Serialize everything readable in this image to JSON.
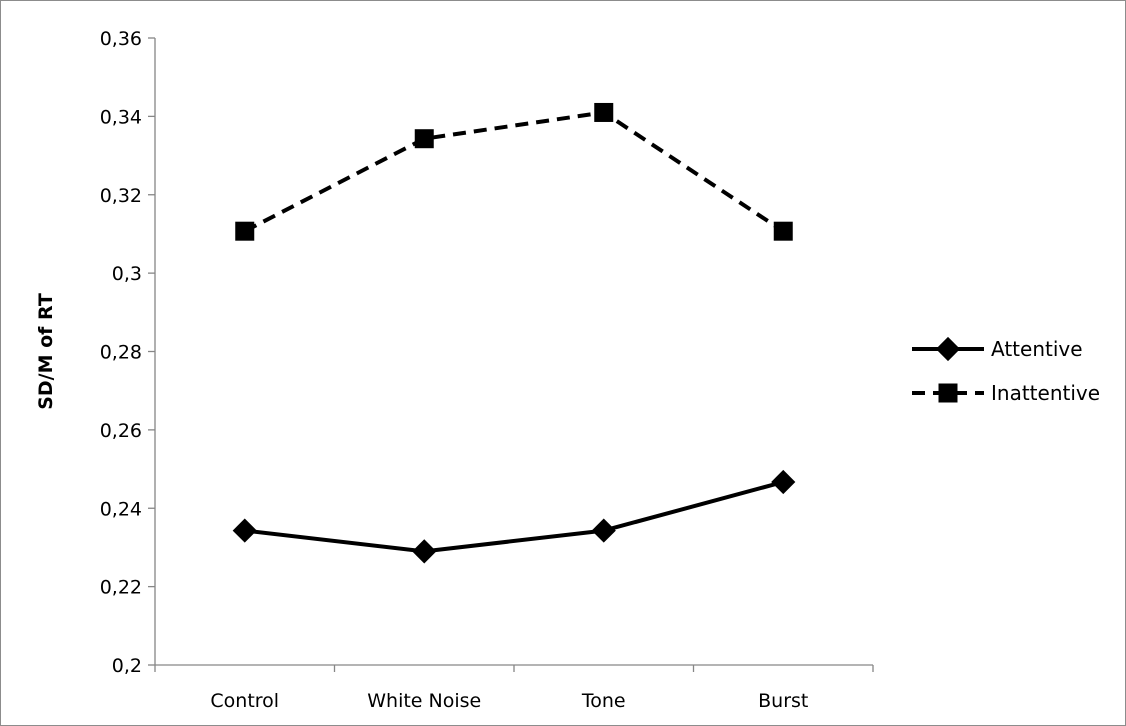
{
  "chart_data": {
    "type": "line",
    "title": "",
    "xlabel": "",
    "ylabel": "SD/M of RT",
    "categories": [
      "Control",
      "White Noise",
      "Tone",
      "Burst"
    ],
    "ylim": [
      0.2,
      0.36
    ],
    "yticks": [
      0.2,
      0.22,
      0.24,
      0.26,
      0.28,
      0.3,
      0.32,
      0.34,
      0.36
    ],
    "ytick_labels": [
      "0,2",
      "0,22",
      "0,24",
      "0,26",
      "0,28",
      "0,3",
      "0,32",
      "0,34",
      "0,36"
    ],
    "grid": false,
    "legend_position": "right",
    "series": [
      {
        "name": "Attentive",
        "values": [
          0.2343,
          0.229,
          0.2343,
          0.2467
        ],
        "line_style": "solid",
        "marker": "diamond",
        "color": "#000000"
      },
      {
        "name": "Inattentive",
        "values": [
          0.3107,
          0.3343,
          0.341,
          0.3107
        ],
        "line_style": "dashed",
        "marker": "square",
        "color": "#000000"
      }
    ]
  }
}
